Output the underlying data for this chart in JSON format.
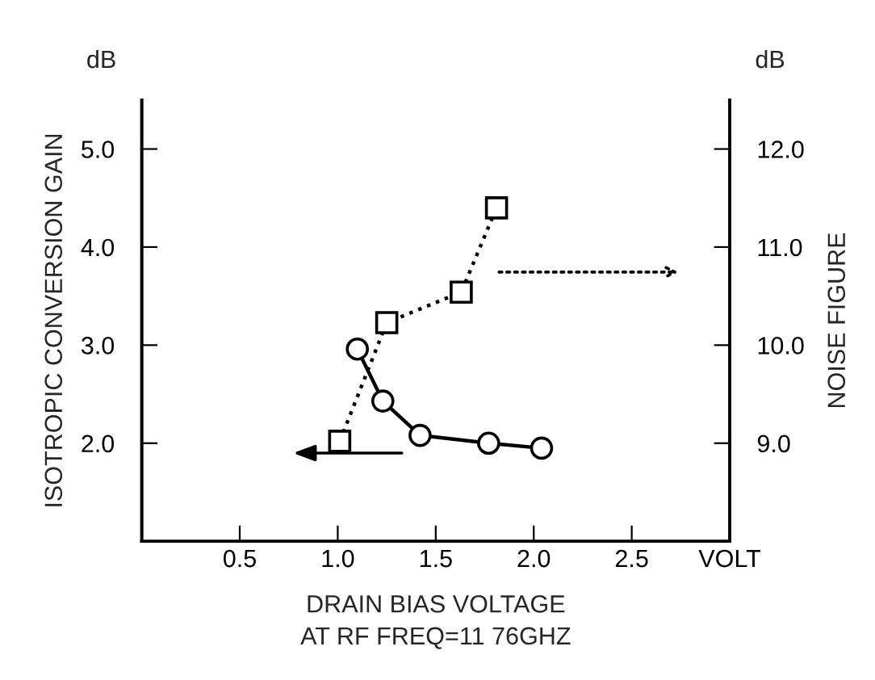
{
  "chart_data": {
    "type": "line",
    "xlabel": "DRAIN BIAS VOLTAGE\nAT RF FREQ=11 76GHZ",
    "ylabel": "ISOTROPIC CONVERSION GAIN",
    "y2label": "NOISE FIGURE",
    "annotations": [
      "dB",
      "dB"
    ],
    "series": [
      {
        "color": "#000000",
        "x": [
          1.1,
          1.23,
          1.42,
          1.77,
          2.04
        ],
        "values": [
          2.96,
          2.43,
          2.08,
          2.0,
          1.95
        ],
        "marker": "circle",
        "line_style": "solid"
      },
      {
        "color": "#000000",
        "x": [
          1.01,
          1.25,
          1.63,
          1.81
        ],
        "values": [
          9.02,
          10.23,
          10.54,
          11.4
        ],
        "marker": "square",
        "line_style": "dotted",
        "axis": "y2"
      }
    ],
    "xlim": [
      0,
      3.0
    ],
    "xticks": [
      0.5,
      {
        "value": 1,
        "label": "1.0"
      },
      1.5,
      {
        "value": 2,
        "label": "2.0"
      },
      2.5,
      {
        "value": 3.0,
        "label": "VOLT"
      }
    ],
    "ylim": [
      1.0,
      5.5
    ],
    "yticks": [
      {
        "value": 2,
        "label": "2.0"
      },
      {
        "value": 3,
        "label": "3.0"
      },
      {
        "value": 4,
        "label": "4.0"
      },
      {
        "value": 5,
        "label": "5.0"
      }
    ],
    "y2lim": [
      8.0,
      12.5
    ],
    "y2ticks": [
      {
        "value": 9,
        "label": "9.0"
      },
      {
        "value": 10,
        "label": "10.0"
      },
      {
        "value": 11,
        "label": "11.0"
      },
      {
        "value": 12,
        "label": "12.0"
      }
    ],
    "grid": false
  }
}
